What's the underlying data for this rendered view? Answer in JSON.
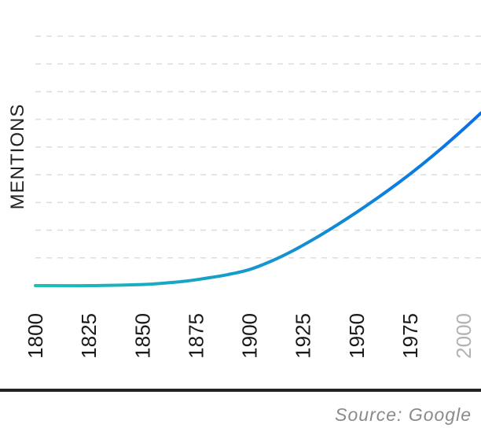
{
  "chart_data": {
    "type": "line",
    "title": "",
    "xlabel": "",
    "ylabel": "MENTIONS",
    "x_ticks": [
      "1800",
      "1825",
      "1850",
      "1875",
      "1900",
      "1925",
      "1950",
      "1975",
      "2000"
    ],
    "xlim": [
      1800,
      2008
    ],
    "ylim": [
      0,
      9
    ],
    "grid": true,
    "series": [
      {
        "name": "Mentions",
        "x": [
          1800,
          1825,
          1850,
          1860,
          1870,
          1880,
          1890,
          1900,
          1910,
          1920,
          1930,
          1940,
          1950,
          1960,
          1970,
          1980,
          1990,
          2000,
          2008
        ],
        "y": [
          0,
          0,
          0.04,
          0.09,
          0.16,
          0.27,
          0.4,
          0.58,
          0.88,
          1.25,
          1.68,
          2.15,
          2.65,
          3.18,
          3.74,
          4.34,
          4.98,
          5.66,
          6.23
        ]
      }
    ],
    "colors": {
      "line_start": "#1ec0b4",
      "line_end": "#0a6fe6",
      "grid": "#dddddd",
      "faded_tick": "#b3b3b3"
    }
  },
  "footer": {
    "source": "Source: Google"
  }
}
